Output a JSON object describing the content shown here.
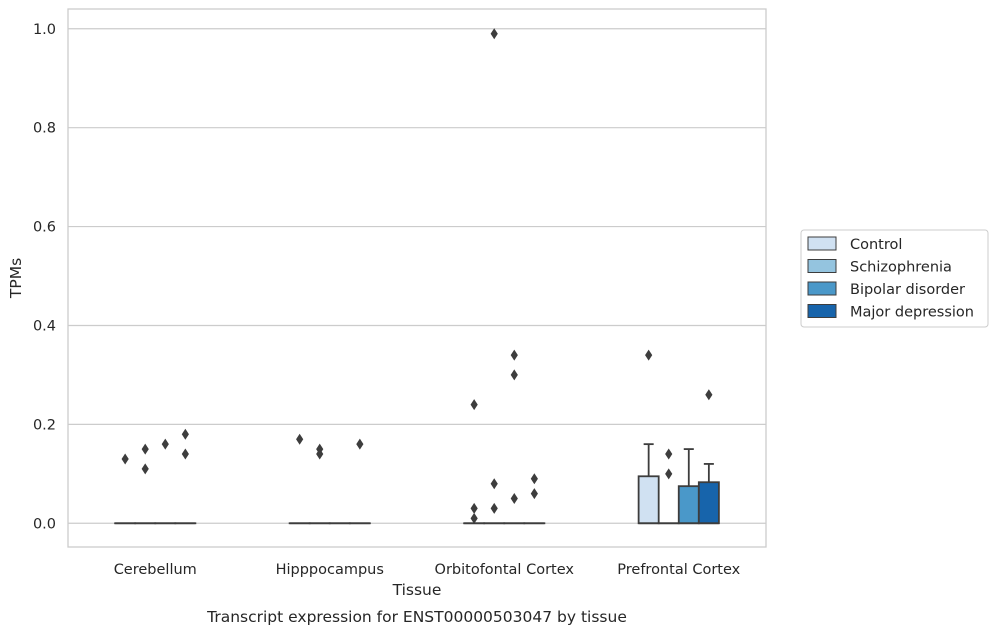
{
  "chart_data": {
    "type": "box",
    "xlabel": "Tissue",
    "ylabel": "TPMs",
    "caption": "Transcript expression for ENST00000503047 by tissue",
    "ylim": [
      -0.048,
      1.04
    ],
    "yticks": [
      0.0,
      0.2,
      0.4,
      0.6,
      0.8,
      1.0
    ],
    "ytick_labels": [
      "0.0",
      "0.2",
      "0.4",
      "0.6",
      "0.8",
      "1.0"
    ],
    "grid": true,
    "legend_position": "right",
    "categories": [
      "Cerebellum",
      "Hipppocampus",
      "Orbitofontal Cortex",
      "Prefrontal Cortex"
    ],
    "series": [
      {
        "name": "Control",
        "color": "#d0e1f2",
        "boxes": [
          {
            "q1": 0,
            "median": 0,
            "q3": 0,
            "whisker_low": 0,
            "whisker_high": 0,
            "outliers": [
              0.13
            ]
          },
          {
            "q1": 0,
            "median": 0,
            "q3": 0,
            "whisker_low": 0,
            "whisker_high": 0,
            "outliers": [
              0.17
            ]
          },
          {
            "q1": 0,
            "median": 0,
            "q3": 0,
            "whisker_low": 0,
            "whisker_high": 0,
            "outliers": [
              0.24,
              0.03,
              0.01
            ]
          },
          {
            "q1": 0,
            "median": 0,
            "q3": 0.095,
            "whisker_low": 0,
            "whisker_high": 0.16,
            "outliers": [
              0.34
            ]
          }
        ]
      },
      {
        "name": "Schizophrenia",
        "color": "#94c4df",
        "boxes": [
          {
            "q1": 0,
            "median": 0,
            "q3": 0,
            "whisker_low": 0,
            "whisker_high": 0,
            "outliers": [
              0.15,
              0.11
            ]
          },
          {
            "q1": 0,
            "median": 0,
            "q3": 0,
            "whisker_low": 0,
            "whisker_high": 0,
            "outliers": [
              0.15,
              0.14
            ]
          },
          {
            "q1": 0,
            "median": 0,
            "q3": 0,
            "whisker_low": 0,
            "whisker_high": 0,
            "outliers": [
              0.99,
              0.08,
              0.03
            ]
          },
          {
            "q1": 0,
            "median": 0,
            "q3": 0,
            "whisker_low": 0,
            "whisker_high": 0,
            "outliers": [
              0.14,
              0.1
            ]
          }
        ]
      },
      {
        "name": "Bipolar disorder",
        "color": "#4a98c9",
        "boxes": [
          {
            "q1": 0,
            "median": 0,
            "q3": 0,
            "whisker_low": 0,
            "whisker_high": 0,
            "outliers": [
              0.16
            ]
          },
          {
            "q1": 0,
            "median": 0,
            "q3": 0,
            "whisker_low": 0,
            "whisker_high": 0,
            "outliers": []
          },
          {
            "q1": 0,
            "median": 0,
            "q3": 0,
            "whisker_low": 0,
            "whisker_high": 0,
            "outliers": [
              0.34,
              0.3,
              0.05
            ]
          },
          {
            "q1": 0,
            "median": 0,
            "q3": 0.075,
            "whisker_low": 0,
            "whisker_high": 0.15,
            "outliers": []
          }
        ]
      },
      {
        "name": "Major depression",
        "color": "#1764ab",
        "boxes": [
          {
            "q1": 0,
            "median": 0,
            "q3": 0,
            "whisker_low": 0,
            "whisker_high": 0,
            "outliers": [
              0.18,
              0.14
            ]
          },
          {
            "q1": 0,
            "median": 0,
            "q3": 0,
            "whisker_low": 0,
            "whisker_high": 0,
            "outliers": [
              0.16
            ]
          },
          {
            "q1": 0,
            "median": 0,
            "q3": 0,
            "whisker_low": 0,
            "whisker_high": 0,
            "outliers": [
              0.09,
              0.06
            ]
          },
          {
            "q1": 0,
            "median": 0,
            "q3": 0.083,
            "whisker_low": 0,
            "whisker_high": 0.12,
            "outliers": [
              0.26
            ]
          }
        ]
      }
    ]
  },
  "colors": {
    "grid": "#cccccc",
    "axes_border": "#cccccc",
    "box_edge": "#3d3d3d",
    "text": "#262626"
  }
}
